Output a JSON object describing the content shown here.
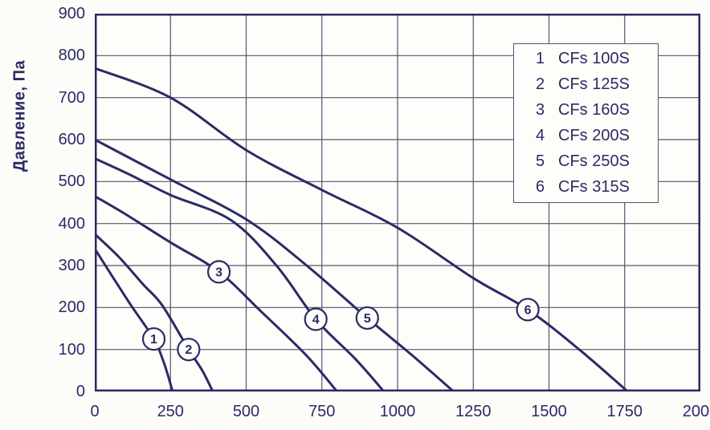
{
  "colors": {
    "curve": "#2b2b66",
    "text": "#2b2b66",
    "grid": "#55556e",
    "border": "#2b2b66",
    "plot_background": "#fdfdfa",
    "page_background": "#fcfcf9",
    "marker_fill": "#fdfdfa"
  },
  "chart_data": {
    "type": "line",
    "title": "",
    "xlabel": "",
    "ylabel": "Давление, Па",
    "xlim": [
      0,
      2000
    ],
    "ylim": [
      0,
      900
    ],
    "x_ticks": [
      0,
      250,
      500,
      750,
      1000,
      1250,
      1500,
      1750,
      2000
    ],
    "y_ticks": [
      0,
      100,
      200,
      300,
      400,
      500,
      600,
      700,
      800,
      900
    ],
    "grid": true,
    "legend_position": "top-right",
    "series": [
      {
        "marker": "1",
        "name": "CFs 100S",
        "marker_at": [
          195,
          125
        ],
        "points": [
          [
            0,
            340
          ],
          [
            60,
            272
          ],
          [
            120,
            205
          ],
          [
            195,
            125
          ],
          [
            230,
            65
          ],
          [
            257,
            0
          ]
        ]
      },
      {
        "marker": "2",
        "name": "CFs 125S",
        "marker_at": [
          310,
          100
        ],
        "points": [
          [
            0,
            375
          ],
          [
            80,
            320
          ],
          [
            160,
            255
          ],
          [
            223,
            205
          ],
          [
            310,
            100
          ],
          [
            355,
            50
          ],
          [
            390,
            0
          ]
        ]
      },
      {
        "marker": "3",
        "name": "CFs 160S",
        "marker_at": [
          410,
          285
        ],
        "points": [
          [
            0,
            465
          ],
          [
            100,
            423
          ],
          [
            250,
            355
          ],
          [
            410,
            285
          ],
          [
            550,
            190
          ],
          [
            700,
            85
          ],
          [
            800,
            0
          ]
        ]
      },
      {
        "marker": "4",
        "name": "CFs 200S",
        "marker_at": [
          730,
          172
        ],
        "points": [
          [
            0,
            555
          ],
          [
            120,
            515
          ],
          [
            250,
            468
          ],
          [
            450,
            408
          ],
          [
            600,
            300
          ],
          [
            730,
            172
          ],
          [
            860,
            78
          ],
          [
            955,
            0
          ]
        ]
      },
      {
        "marker": "5",
        "name": "CFs 250S",
        "marker_at": [
          900,
          175
        ],
        "points": [
          [
            0,
            600
          ],
          [
            250,
            505
          ],
          [
            500,
            410
          ],
          [
            700,
            300
          ],
          [
            900,
            175
          ],
          [
            1050,
            85
          ],
          [
            1185,
            0
          ]
        ]
      },
      {
        "marker": "6",
        "name": "CFs 315S",
        "marker_at": [
          1430,
          195
        ],
        "points": [
          [
            0,
            770
          ],
          [
            250,
            700
          ],
          [
            500,
            575
          ],
          [
            750,
            480
          ],
          [
            1000,
            390
          ],
          [
            1250,
            270
          ],
          [
            1430,
            195
          ],
          [
            1600,
            100
          ],
          [
            1760,
            0
          ]
        ]
      }
    ]
  }
}
